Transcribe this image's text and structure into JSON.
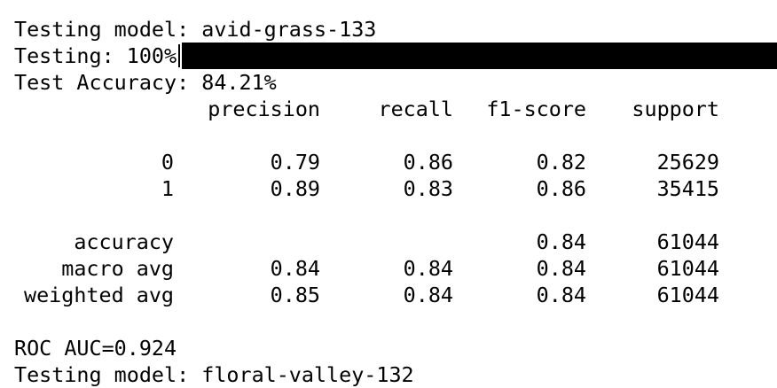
{
  "terminal": {
    "partial_top_line": "Testing model: avid-grass-133",
    "testing_label": "Testing: 100%",
    "progress_fraction": 1.0,
    "accuracy_line": "Test Accuracy: 84.21%",
    "report": {
      "headers": [
        "precision",
        "recall",
        "f1-score",
        "support"
      ],
      "rows": [
        {
          "label": "0",
          "precision": "0.79",
          "recall": "0.86",
          "f1": "0.82",
          "support": "25629"
        },
        {
          "label": "1",
          "precision": "0.89",
          "recall": "0.83",
          "f1": "0.86",
          "support": "35415"
        }
      ],
      "summary_rows": [
        {
          "label": "accuracy",
          "precision": "",
          "recall": "",
          "f1": "0.84",
          "support": "61044"
        },
        {
          "label": "macro avg",
          "precision": "0.84",
          "recall": "0.84",
          "f1": "0.84",
          "support": "61044"
        },
        {
          "label": "weighted avg",
          "precision": "0.85",
          "recall": "0.84",
          "f1": "0.84",
          "support": "61044"
        }
      ]
    },
    "roc_line": "ROC AUC=0.924",
    "next_line": "Testing model: floral-valley-132"
  }
}
